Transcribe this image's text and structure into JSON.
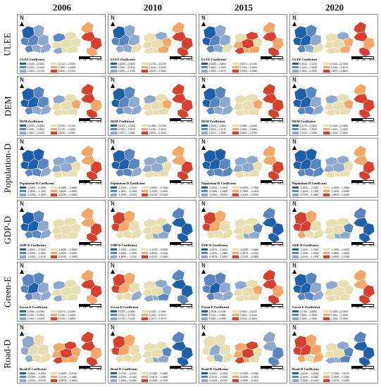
{
  "years": [
    "2006",
    "2010",
    "2015",
    "2020"
  ],
  "rows": [
    {
      "label": "ULEE",
      "panels": [
        {
          "title": "ULEE Coefficient",
          "classes": [
            "0.0040 – 0.0530",
            "0.0531 – 0.1500",
            "0.1501 – 0.2140",
            "0.2141 – 0.2990",
            "0.2991 – 0.3250",
            "0.3251 – 0.3700"
          ],
          "colors": [
            "#1f5fa8",
            "#5a86bd",
            "#8ea9cc",
            "#e7dfb2",
            "#f3a869",
            "#d8402e"
          ],
          "field": [
            0,
            1,
            1,
            2,
            1,
            2,
            2,
            2,
            1,
            3,
            3,
            3,
            2,
            3,
            3,
            3,
            4,
            5,
            5,
            4
          ]
        },
        {
          "title": "ULEE Coefficient",
          "classes": [
            "0.0060 – 0.0600",
            "0.0601 – 0.0910",
            "0.0911 – 0.1750",
            "0.1751 – 0.2240",
            "0.2241 – 0.3220",
            "0.3221 – 0.3560"
          ],
          "colors": [
            "#1f5fa8",
            "#5a86bd",
            "#8ea9cc",
            "#e7dfb2",
            "#f3a869",
            "#d8402e"
          ],
          "field": [
            0,
            1,
            1,
            2,
            2,
            2,
            2,
            3,
            3,
            3,
            3,
            2,
            3,
            3,
            4,
            4,
            4,
            5,
            5,
            5
          ]
        },
        {
          "title": "ULEE Coefficient",
          "classes": [
            "0.0080 – 0.0800",
            "0.0801 – 0.2400",
            "0.2401 – 0.5370",
            "0.5371 – 0.7190",
            "0.7191 – 0.9900",
            "0.9901 – 1.0580"
          ],
          "colors": [
            "#1f5fa8",
            "#5a86bd",
            "#8ea9cc",
            "#e7dfb2",
            "#f3a869",
            "#d8402e"
          ],
          "field": [
            0,
            0,
            1,
            2,
            1,
            2,
            2,
            3,
            3,
            4,
            5,
            5,
            5,
            4,
            4,
            3,
            4,
            5,
            4,
            5
          ]
        },
        {
          "title": "ULEE Coefficient",
          "classes": [
            "0.0010 – 0.1220",
            "0.1221 – 0.1830",
            "0.1831 – 0.2400",
            "0.2401 – 0.3160",
            "0.3161 – 0.4570",
            "0.4571 – 0.6600"
          ],
          "colors": [
            "#1f5fa8",
            "#5a86bd",
            "#8ea9cc",
            "#e7dfb2",
            "#f3a869",
            "#d8402e"
          ],
          "field": [
            0,
            0,
            0,
            1,
            1,
            2,
            2,
            3,
            3,
            3,
            3,
            2,
            3,
            3,
            4,
            4,
            5,
            5,
            4,
            5
          ]
        }
      ]
    },
    {
      "label": "DEM",
      "panels": [
        {
          "title": "DEM Coefficient",
          "classes": [
            "0.0000 – 0.0050",
            "0.0051 – 0.0600",
            "0.0601 – 0.1000",
            "0.1001 – 0.1700",
            "0.1701 – 0.3200",
            "0.3201 – 0.4500"
          ],
          "colors": [
            "#1f5fa8",
            "#5a86bd",
            "#8ea9cc",
            "#e7dfb2",
            "#f3a869",
            "#d8402e"
          ],
          "field": [
            0,
            0,
            0,
            1,
            1,
            2,
            1,
            2,
            2,
            3,
            3,
            3,
            3,
            3,
            3,
            4,
            5,
            5,
            4,
            5
          ]
        },
        {
          "title": "DEM Coefficient",
          "classes": [
            "0.0000 – 0.0300",
            "0.0301 – 0.0970",
            "0.0971 – 0.1650",
            "0.1651 – 0.2780",
            "0.2781 – 0.3910",
            "0.3911 – 0.4530"
          ],
          "colors": [
            "#1f5fa8",
            "#5a86bd",
            "#8ea9cc",
            "#e7dfb2",
            "#f3a869",
            "#d8402e"
          ],
          "field": [
            0,
            0,
            1,
            1,
            1,
            2,
            2,
            2,
            2,
            3,
            3,
            3,
            3,
            3,
            3,
            4,
            5,
            5,
            5,
            5
          ]
        },
        {
          "title": "DEM Coefficient",
          "classes": [
            "0.0000 – 0.0500",
            "0.0501 – 0.1070",
            "0.1071 – 0.1680",
            "0.1681 – 0.2550",
            "0.2551 – 0.3560",
            "0.3561 – 0.3750"
          ],
          "colors": [
            "#1f5fa8",
            "#5a86bd",
            "#8ea9cc",
            "#e7dfb2",
            "#f3a869",
            "#d8402e"
          ],
          "field": [
            0,
            0,
            1,
            1,
            1,
            2,
            2,
            2,
            3,
            3,
            3,
            3,
            3,
            3,
            3,
            4,
            5,
            5,
            5,
            5
          ]
        },
        {
          "title": "DEM Coefficient",
          "classes": [
            "0.0170 – 0.0500",
            "0.0501 – 0.1000",
            "0.1001 – 0.1490",
            "0.1491 – 0.1850",
            "0.1851 – 0.2350",
            "0.2351 – 0.2600"
          ],
          "colors": [
            "#1f5fa8",
            "#5a86bd",
            "#8ea9cc",
            "#e7dfb2",
            "#f3a869",
            "#d8402e"
          ],
          "field": [
            0,
            0,
            0,
            1,
            1,
            1,
            2,
            2,
            2,
            3,
            3,
            3,
            3,
            3,
            3,
            4,
            4,
            5,
            5,
            5
          ]
        }
      ]
    },
    {
      "label": "Population-D",
      "panels": [
        {
          "title": "Population-D Coefficient",
          "classes": [
            "-1.6500 – -1.4000",
            "-1.3999 – -1.2300",
            "-1.2299 – -1.0600",
            "-1.0599 – -0.9000",
            "-0.8999 – -0.6300",
            "-0.6299 – -0.4000"
          ],
          "colors": [
            "#1f5fa8",
            "#5a86bd",
            "#8ea9cc",
            "#e7dfb2",
            "#f3a869",
            "#d8402e"
          ],
          "field": [
            0,
            0,
            0,
            0,
            1,
            1,
            1,
            2,
            2,
            2,
            2,
            2,
            3,
            3,
            3,
            3,
            4,
            4,
            5,
            5
          ]
        },
        {
          "title": "Population-D Coefficient",
          "classes": [
            "-1.4400 – -1.3700",
            "-1.3699 – -1.1900",
            "-1.1899 – -0.9700",
            "-0.9699 – -0.7530",
            "-0.7529 – -0.6150",
            "-0.6149 – -0.4030"
          ],
          "colors": [
            "#1f5fa8",
            "#5a86bd",
            "#8ea9cc",
            "#e7dfb2",
            "#f3a869",
            "#d8402e"
          ],
          "field": [
            0,
            0,
            0,
            1,
            1,
            1,
            1,
            2,
            2,
            2,
            2,
            2,
            3,
            3,
            3,
            3,
            4,
            4,
            5,
            5
          ]
        },
        {
          "title": "Population-D Coefficient",
          "classes": [
            "-1.6000 – -1.3400",
            "-1.3399 – -1.0500",
            "-1.0499 – -0.9200",
            "-0.9199 – -0.7560",
            "-0.7559 – -0.4100",
            "-0.4099 – -0.3000"
          ],
          "colors": [
            "#1f5fa8",
            "#5a86bd",
            "#8ea9cc",
            "#e7dfb2",
            "#f3a869",
            "#d8402e"
          ],
          "field": [
            0,
            0,
            0,
            0,
            1,
            1,
            1,
            1,
            2,
            2,
            2,
            2,
            3,
            3,
            3,
            3,
            4,
            4,
            5,
            5
          ]
        },
        {
          "title": "Population-D Coefficient",
          "classes": [
            "-2.4500 – -2.1520",
            "-2.1519 – -1.7300",
            "-1.7299 – -1.4860",
            "-1.4859 – -1.2600",
            "-1.2599 – -0.8930",
            "-0.8929 – -0.5300"
          ],
          "colors": [
            "#1f5fa8",
            "#5a86bd",
            "#8ea9cc",
            "#e7dfb2",
            "#f3a869",
            "#d8402e"
          ],
          "field": [
            0,
            0,
            0,
            0,
            1,
            1,
            1,
            1,
            2,
            2,
            2,
            2,
            3,
            3,
            3,
            3,
            4,
            4,
            5,
            5
          ]
        }
      ]
    },
    {
      "label": "GDP-D",
      "panels": [
        {
          "title": "GDP-D Coefficient",
          "classes": [
            "-2.8500 – -2.0300",
            "-2.0299 – -1.6500",
            "-1.6499 – -1.4700",
            "-1.4699 – -0.9500",
            "-0.9499 – -0.5300",
            "-0.5299 – -0.3300"
          ],
          "colors": [
            "#1f5fa8",
            "#5a86bd",
            "#8ea9cc",
            "#e7dfb2",
            "#f3a869",
            "#d8402e"
          ],
          "field": [
            0,
            0,
            0,
            1,
            1,
            1,
            2,
            2,
            3,
            3,
            3,
            3,
            3,
            3,
            3,
            3,
            4,
            4,
            5,
            5
          ]
        },
        {
          "title": "GDP-D Coefficient",
          "classes": [
            "-2.1300 – -1.4870",
            "-1.4869 – -1.3900",
            "-1.3899 – -1.1320",
            "-1.1319 – -0.8260",
            "-0.8259 – -0.6150",
            "-0.6149 – -0.2600"
          ],
          "colors": [
            "#1f5fa8",
            "#5a86bd",
            "#8ea9cc",
            "#e7dfb2",
            "#f3a869",
            "#d8402e"
          ],
          "field": [
            5,
            5,
            4,
            4,
            3,
            3,
            3,
            3,
            3,
            3,
            3,
            3,
            3,
            2,
            2,
            1,
            1,
            0,
            0,
            0
          ]
        },
        {
          "title": "GDP-D Coefficient",
          "classes": [
            "-1.8570 – -1.6430",
            "-1.6429 – -1.3580",
            "-1.3579 – -1.0200",
            "-1.0199 – -0.6480",
            "-0.6479 – -0.5140",
            "-0.5139 – -0.3550"
          ],
          "colors": [
            "#1f5fa8",
            "#5a86bd",
            "#8ea9cc",
            "#e7dfb2",
            "#f3a869",
            "#d8402e"
          ],
          "field": [
            5,
            5,
            4,
            4,
            3,
            3,
            3,
            3,
            3,
            3,
            3,
            3,
            3,
            2,
            2,
            1,
            1,
            0,
            0,
            0
          ]
        },
        {
          "title": "GDP-D Coefficient",
          "classes": [
            "-2.1600 – -1.7550",
            "-1.7549 – -1.5200",
            "-1.5199 – -1.2300",
            "-1.2299 – -0.9570",
            "-0.9569 – -0.6510",
            "-0.6509 – -0.2050"
          ],
          "colors": [
            "#1f5fa8",
            "#5a86bd",
            "#8ea9cc",
            "#e7dfb2",
            "#f3a869",
            "#d8402e"
          ],
          "field": [
            5,
            5,
            5,
            4,
            4,
            3,
            3,
            3,
            3,
            3,
            3,
            3,
            3,
            2,
            2,
            1,
            1,
            0,
            0,
            0
          ]
        }
      ]
    },
    {
      "label": "Green-E",
      "panels": [
        {
          "title": "Green-E Coefficient",
          "classes": [
            "0.0060 – 0.0350",
            "0.0351 – 0.0900",
            "0.0901 – 0.1470",
            "0.1471 – 0.2450",
            "0.2451 – 0.3200",
            "0.3201 – 0.3800"
          ],
          "colors": [
            "#1f5fa8",
            "#5a86bd",
            "#8ea9cc",
            "#e7dfb2",
            "#f3a869",
            "#d8402e"
          ],
          "field": [
            1,
            1,
            0,
            1,
            1,
            2,
            2,
            2,
            2,
            3,
            3,
            3,
            2,
            3,
            3,
            3,
            4,
            5,
            5,
            4
          ]
        },
        {
          "title": "Green-E Coefficient",
          "classes": [
            "0.0200 – 0.0420",
            "0.0421 – 0.0750",
            "0.0751 – 0.1430",
            "0.1431 – 0.1960",
            "0.1961 – 0.2670",
            "0.2671 – 0.3070"
          ],
          "colors": [
            "#1f5fa8",
            "#5a86bd",
            "#8ea9cc",
            "#e7dfb2",
            "#f3a869",
            "#d8402e"
          ],
          "field": [
            5,
            5,
            4,
            4,
            3,
            3,
            3,
            2,
            3,
            3,
            3,
            2,
            2,
            2,
            1,
            2,
            1,
            0,
            0,
            1
          ]
        },
        {
          "title": "Green-E Coefficient",
          "classes": [
            "0.0006 – 0.0150",
            "0.0151 – 0.0660",
            "0.0661 – 0.0940",
            "0.0941 – 0.1620",
            "0.1621 – 0.2010",
            "0.2011 – 0.2600"
          ],
          "colors": [
            "#1f5fa8",
            "#5a86bd",
            "#8ea9cc",
            "#e7dfb2",
            "#f3a869",
            "#d8402e"
          ],
          "field": [
            1,
            1,
            0,
            1,
            1,
            2,
            2,
            2,
            2,
            3,
            3,
            3,
            3,
            3,
            3,
            4,
            5,
            5,
            4,
            5
          ]
        },
        {
          "title": "Green-E Coefficient",
          "classes": [
            "0.0780 – 0.0950",
            "0.0951 – 0.1550",
            "0.1551 – 0.1580",
            "0.1581 – 0.1900",
            "0.1901 – 0.2260",
            "0.2261 – 0.2500"
          ],
          "colors": [
            "#1f5fa8",
            "#5a86bd",
            "#8ea9cc",
            "#e7dfb2",
            "#f3a869",
            "#d8402e"
          ],
          "field": [
            0,
            0,
            0,
            1,
            1,
            1,
            2,
            2,
            2,
            3,
            3,
            3,
            3,
            3,
            3,
            3,
            4,
            4,
            5,
            5
          ]
        }
      ]
    },
    {
      "label": "Road-D",
      "panels": [
        {
          "title": "Road-D Coefficient",
          "classes": [
            "-0.2600 – -0.2300",
            "-0.2299 – -0.1930",
            "-0.1929 – -0.1700",
            "-0.1699 – -0.1250",
            "-0.1249 – -0.0880",
            "-0.0879 – -0.0500"
          ],
          "colors": [
            "#1f5fa8",
            "#5a86bd",
            "#8ea9cc",
            "#e7dfb2",
            "#f3a869",
            "#d8402e"
          ],
          "field": [
            2,
            2,
            3,
            3,
            2,
            3,
            3,
            3,
            4,
            4,
            5,
            5,
            5,
            4,
            4,
            4,
            5,
            5,
            4,
            5
          ]
        },
        {
          "title": "Road-D Coefficient",
          "classes": [
            "-0.2700 – -0.2210",
            "-0.2209 – -0.1810",
            "-0.1809 – -0.1460",
            "-0.1459 – -0.0680",
            "-0.0679 – -0.0460",
            "-0.0459 – -0.0150"
          ],
          "colors": [
            "#1f5fa8",
            "#5a86bd",
            "#8ea9cc",
            "#e7dfb2",
            "#f3a869",
            "#d8402e"
          ],
          "field": [
            5,
            5,
            4,
            4,
            3,
            3,
            3,
            3,
            3,
            3,
            3,
            3,
            3,
            2,
            2,
            1,
            1,
            0,
            0,
            0
          ]
        },
        {
          "title": "Road-D Coefficient",
          "classes": [
            "-0.5300 – -0.4250",
            "-0.4249 – -0.2630",
            "-0.2629 – -0.1500",
            "-0.1499 – -0.0940",
            "-0.0939 – -0.0400",
            "-0.0399 – -0.0100"
          ],
          "colors": [
            "#1f5fa8",
            "#5a86bd",
            "#8ea9cc",
            "#e7dfb2",
            "#f3a869",
            "#d8402e"
          ],
          "field": [
            3,
            3,
            2,
            3,
            3,
            2,
            3,
            3,
            4,
            4,
            5,
            5,
            5,
            4,
            3,
            3,
            2,
            2,
            1,
            1
          ]
        },
        {
          "title": "Road-D Coefficient",
          "classes": [
            "-0.4150 – -0.3430",
            "-0.3429 – -0.2840",
            "-0.2839 – -0.2160",
            "-0.2159 – -0.1570",
            "-0.1569 – -0.1080",
            "-0.1079 – -0.0600"
          ],
          "colors": [
            "#1f5fa8",
            "#5a86bd",
            "#8ea9cc",
            "#e7dfb2",
            "#f3a869",
            "#d8402e"
          ],
          "field": [
            5,
            5,
            5,
            4,
            4,
            3,
            4,
            4,
            3,
            3,
            3,
            2,
            2,
            2,
            1,
            1,
            1,
            0,
            0,
            0
          ]
        }
      ]
    }
  ],
  "scale_labels": [
    "0",
    "175",
    "350",
    "700 km"
  ],
  "north_symbol": "N"
}
